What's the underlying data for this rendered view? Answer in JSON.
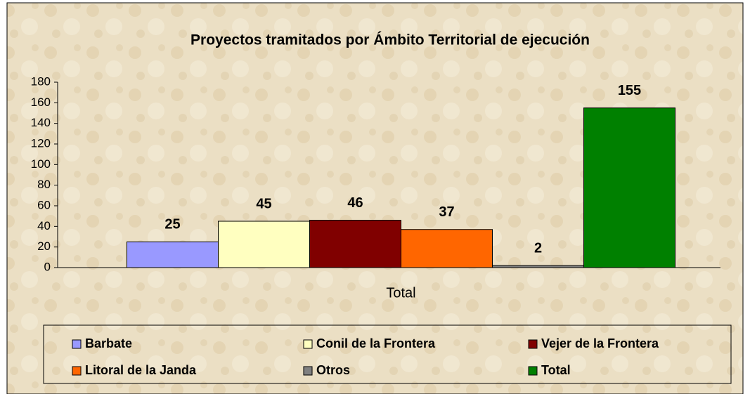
{
  "chart_data": {
    "type": "bar",
    "title": "Proyectos tramitados por Ámbito Territorial de ejecución",
    "categories": [
      "Total"
    ],
    "series": [
      {
        "name": "Barbate",
        "color": "#9999ff",
        "values": [
          25
        ]
      },
      {
        "name": "Conil de la Frontera",
        "color": "#ffffc0",
        "values": [
          45
        ]
      },
      {
        "name": "Vejer de la Frontera",
        "color": "#800000",
        "values": [
          46
        ]
      },
      {
        "name": "Litoral de la Janda",
        "color": "#ff6600",
        "values": [
          37
        ]
      },
      {
        "name": "Otros",
        "color": "#808080",
        "values": [
          2
        ]
      },
      {
        "name": "Total",
        "color": "#008000",
        "values": [
          155
        ]
      }
    ],
    "ylim": [
      0,
      180
    ],
    "yticks": [
      0,
      20,
      40,
      60,
      80,
      100,
      120,
      140,
      160,
      180
    ],
    "grid": false,
    "legend": "bottom"
  }
}
